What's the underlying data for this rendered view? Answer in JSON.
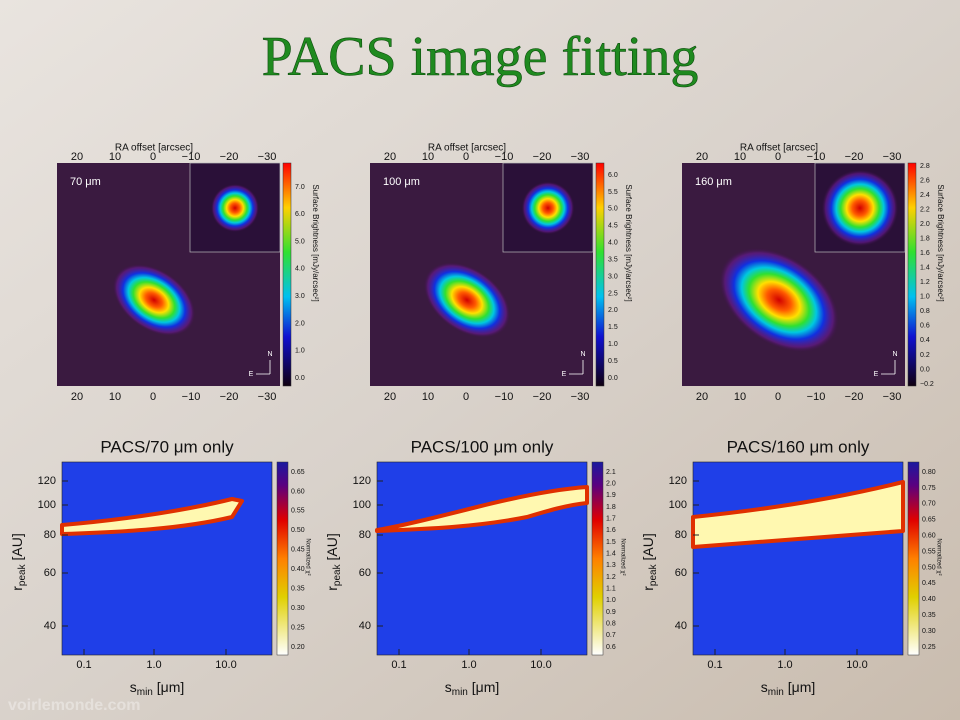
{
  "title": "PACS image fitting",
  "watermark": "voirlemonde.com",
  "image_panels": [
    {
      "label": "70 μm",
      "top_axis_label": "RA offset [arcsec]",
      "x_ticks": [
        "20",
        "10",
        "0",
        "−10",
        "−20",
        "−30"
      ],
      "colorbar_label": "Surface Brightness [mJy/arcsec²]",
      "colorbar_ticks": [
        "7.0",
        "6.0",
        "5.0",
        "4.0",
        "3.0",
        "2.0",
        "1.0",
        "0.0"
      ],
      "compass_n": "N",
      "compass_e": "E"
    },
    {
      "label": "100 μm",
      "top_axis_label": "RA offset [arcsec]",
      "x_ticks": [
        "20",
        "10",
        "0",
        "−10",
        "−20",
        "−30"
      ],
      "colorbar_label": "Surface Brightness [mJy/arcsec²]",
      "colorbar_ticks": [
        "6.0",
        "5.5",
        "5.0",
        "4.5",
        "4.0",
        "3.5",
        "3.0",
        "2.5",
        "2.0",
        "1.5",
        "1.0",
        "0.5",
        "0.0"
      ],
      "compass_n": "N",
      "compass_e": "E"
    },
    {
      "label": "160 μm",
      "top_axis_label": "RA offset [arcsec]",
      "x_ticks": [
        "20",
        "10",
        "0",
        "−10",
        "−20",
        "−30"
      ],
      "colorbar_label": "Surface Brightness [mJy/arcsec²]",
      "colorbar_ticks": [
        "2.8",
        "2.6",
        "2.4",
        "2.2",
        "2.0",
        "1.8",
        "1.6",
        "1.4",
        "1.2",
        "1.0",
        "0.8",
        "0.6",
        "0.4",
        "0.2",
        "0.0",
        "−0.2"
      ],
      "compass_n": "N",
      "compass_e": "E"
    }
  ],
  "fit_panels": [
    {
      "title": "PACS/70 μm only",
      "y_label": {
        "main": "r",
        "sub": "peak",
        "unit": " [AU]"
      },
      "y_ticks": [
        "120",
        "100",
        "80",
        "60",
        "40"
      ],
      "x_ticks": [
        "0.1",
        "1.0",
        "10.0"
      ],
      "x_label": {
        "main": "s",
        "sub": "min",
        "unit": " [μm]"
      },
      "colorbar_label": "Normalized χ²",
      "colorbar_ticks": [
        "0.65",
        "0.60",
        "0.55",
        "0.50",
        "0.45",
        "0.40",
        "0.35",
        "0.30",
        "0.25",
        "0.20"
      ]
    },
    {
      "title": "PACS/100 μm only",
      "y_label": {
        "main": "r",
        "sub": "peak",
        "unit": " [AU]"
      },
      "y_ticks": [
        "120",
        "100",
        "80",
        "60",
        "40"
      ],
      "x_ticks": [
        "0.1",
        "1.0",
        "10.0"
      ],
      "x_label": {
        "main": "s",
        "sub": "min",
        "unit": " [μm]"
      },
      "colorbar_label": "Normalized χ²",
      "colorbar_ticks": [
        "2.1",
        "2.0",
        "1.9",
        "1.8",
        "1.7",
        "1.6",
        "1.5",
        "1.4",
        "1.3",
        "1.2",
        "1.1",
        "1.0",
        "0.9",
        "0.8",
        "0.7",
        "0.6"
      ]
    },
    {
      "title": "PACS/160 μm only",
      "y_label": {
        "main": "r",
        "sub": "peak",
        "unit": " [AU]"
      },
      "y_ticks": [
        "120",
        "100",
        "80",
        "60",
        "40"
      ],
      "x_ticks": [
        "0.1",
        "1.0",
        "10.0"
      ],
      "x_label": {
        "main": "s",
        "sub": "min",
        "unit": " [μm]"
      },
      "colorbar_label": "Normalized χ²",
      "colorbar_ticks": [
        "0.80",
        "0.75",
        "0.70",
        "0.65",
        "0.60",
        "0.55",
        "0.50",
        "0.45",
        "0.40",
        "0.35",
        "0.30",
        "0.25"
      ]
    }
  ]
}
